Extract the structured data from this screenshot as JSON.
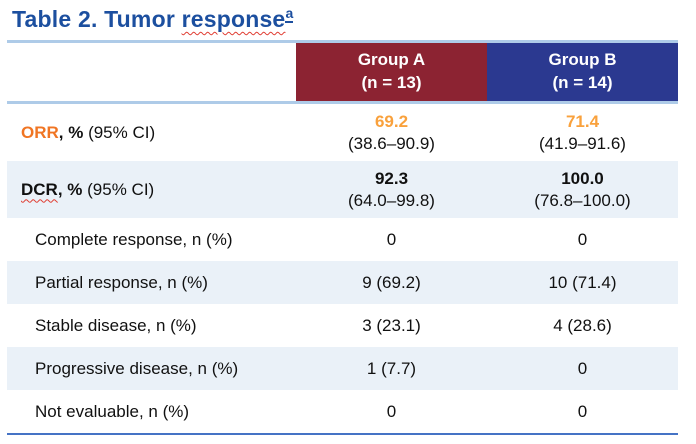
{
  "title": {
    "prefix": "Table 2. Tumor ",
    "misspelled_word": "response",
    "superscript": "a",
    "color": "#1C4F9F"
  },
  "colors": {
    "title_blue": "#1C4F9F",
    "group_a_red": "#8C2332",
    "group_b_blue": "#2B3990",
    "header_border_light_blue": "#AECBE8",
    "shaded_row": "#EAF1F8",
    "bottom_border_blue": "#4573C5",
    "orr_label_orange": "#F07523",
    "orr_value_orange": "#F9A13C",
    "spellcheck_red": "#E03C31"
  },
  "table": {
    "columns": [
      {
        "label_line1": "",
        "label_line2": "",
        "color": "#FFFFFF"
      },
      {
        "label_line1": "Group A",
        "label_line2": "(n = 13)",
        "color": "#8C2332"
      },
      {
        "label_line1": "Group B",
        "label_line2": "(n = 14)",
        "color": "#2B3990"
      }
    ],
    "rows": [
      {
        "type": "two-line",
        "term": "ORR",
        "term_color": "#F07523",
        "term_misspelled": false,
        "label_bold": ", %",
        "label_rest": " (95% CI)",
        "groupA_main": "69.2",
        "groupA_ci": "(38.6–90.9)",
        "groupB_main": "71.4",
        "groupB_ci": "(41.9–91.6)",
        "main_color": "#F9A13C",
        "shaded": false
      },
      {
        "type": "two-line",
        "term": "DCR",
        "term_color": "#111111",
        "term_misspelled": true,
        "label_bold": ", %",
        "label_rest": " (95% CI)",
        "groupA_main": "92.3",
        "groupA_ci": "(64.0–99.8)",
        "groupB_main": "100.0",
        "groupB_ci": "(76.8–100.0)",
        "main_color": "#111111",
        "shaded": true
      },
      {
        "type": "single",
        "label": "Complete response, n (%)",
        "groupA": "0",
        "groupB": "0",
        "shaded": false
      },
      {
        "type": "single",
        "label": "Partial response, n (%)",
        "groupA": "9 (69.2)",
        "groupB": "10 (71.4)",
        "shaded": true
      },
      {
        "type": "single",
        "label": "Stable disease, n (%)",
        "groupA": "3 (23.1)",
        "groupB": "4 (28.6)",
        "shaded": false
      },
      {
        "type": "single",
        "label": "Progressive disease, n (%)",
        "groupA": "1 (7.7)",
        "groupB": "0",
        "shaded": true
      },
      {
        "type": "single",
        "label": "Not evaluable, n (%)",
        "groupA": "0",
        "groupB": "0",
        "shaded": false
      }
    ]
  }
}
